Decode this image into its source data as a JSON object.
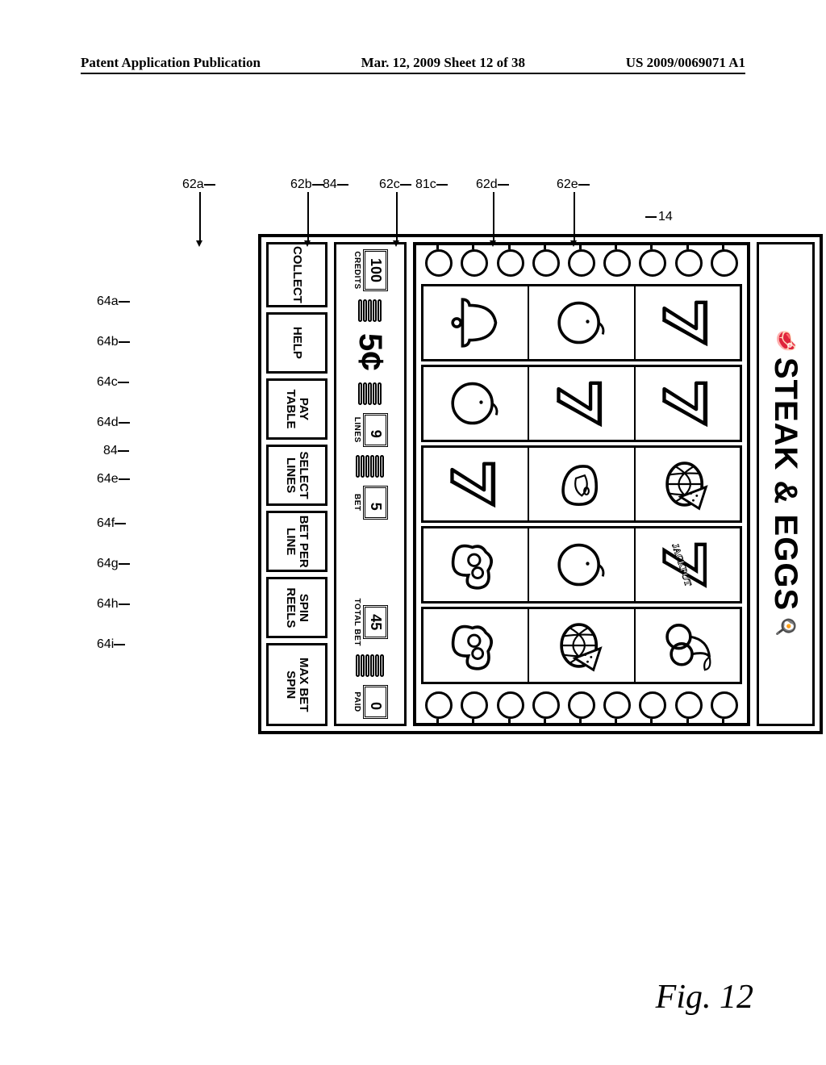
{
  "header": {
    "left": "Patent Application Publication",
    "center": "Mar. 12, 2009  Sheet 12 of 38",
    "right": "US 2009/0069071 A1"
  },
  "figure_label": "Fig. 12",
  "marquee": {
    "title": "STEAK & EGGS"
  },
  "denom": {
    "value": "5",
    "symbol": "¢"
  },
  "meters": {
    "credits": {
      "value": "100",
      "caption": "CREDITS"
    },
    "lines": {
      "value": "9",
      "caption": "LINES"
    },
    "bet": {
      "value": "5",
      "caption": "BET"
    },
    "total": {
      "value": "45",
      "caption": "TOTAL BET"
    },
    "paid": {
      "value": "0",
      "caption": "PAID"
    }
  },
  "buttons": {
    "collect": "COLLECT",
    "help": "HELP",
    "pay_table": "PAY\nTABLE",
    "select_lines": "SELECT\nLINES",
    "bet_per_line": "BET PER\nLINE",
    "spin_reels": "SPIN\nREELS",
    "max_bet_spin": "MAX BET\nSPIN"
  },
  "reels": [
    [
      "seven",
      "seven",
      "melon",
      "jackpot",
      "cherries"
    ],
    [
      "orange",
      "seven",
      "steak",
      "orange",
      "melon"
    ],
    [
      "bell",
      "orange",
      "seven",
      "eggs",
      "eggs"
    ]
  ],
  "ref_numbers": {
    "frame": "14",
    "reels_top": [
      "62a",
      "62b",
      "62c",
      "62d",
      "62e"
    ],
    "extra_top": [
      "84",
      "81c"
    ],
    "bumpers_left": [
      "64a",
      "64b",
      "64c",
      "64d",
      "64e",
      "64f",
      "64g",
      "64h",
      "64i"
    ],
    "bumper_inline": "84"
  }
}
